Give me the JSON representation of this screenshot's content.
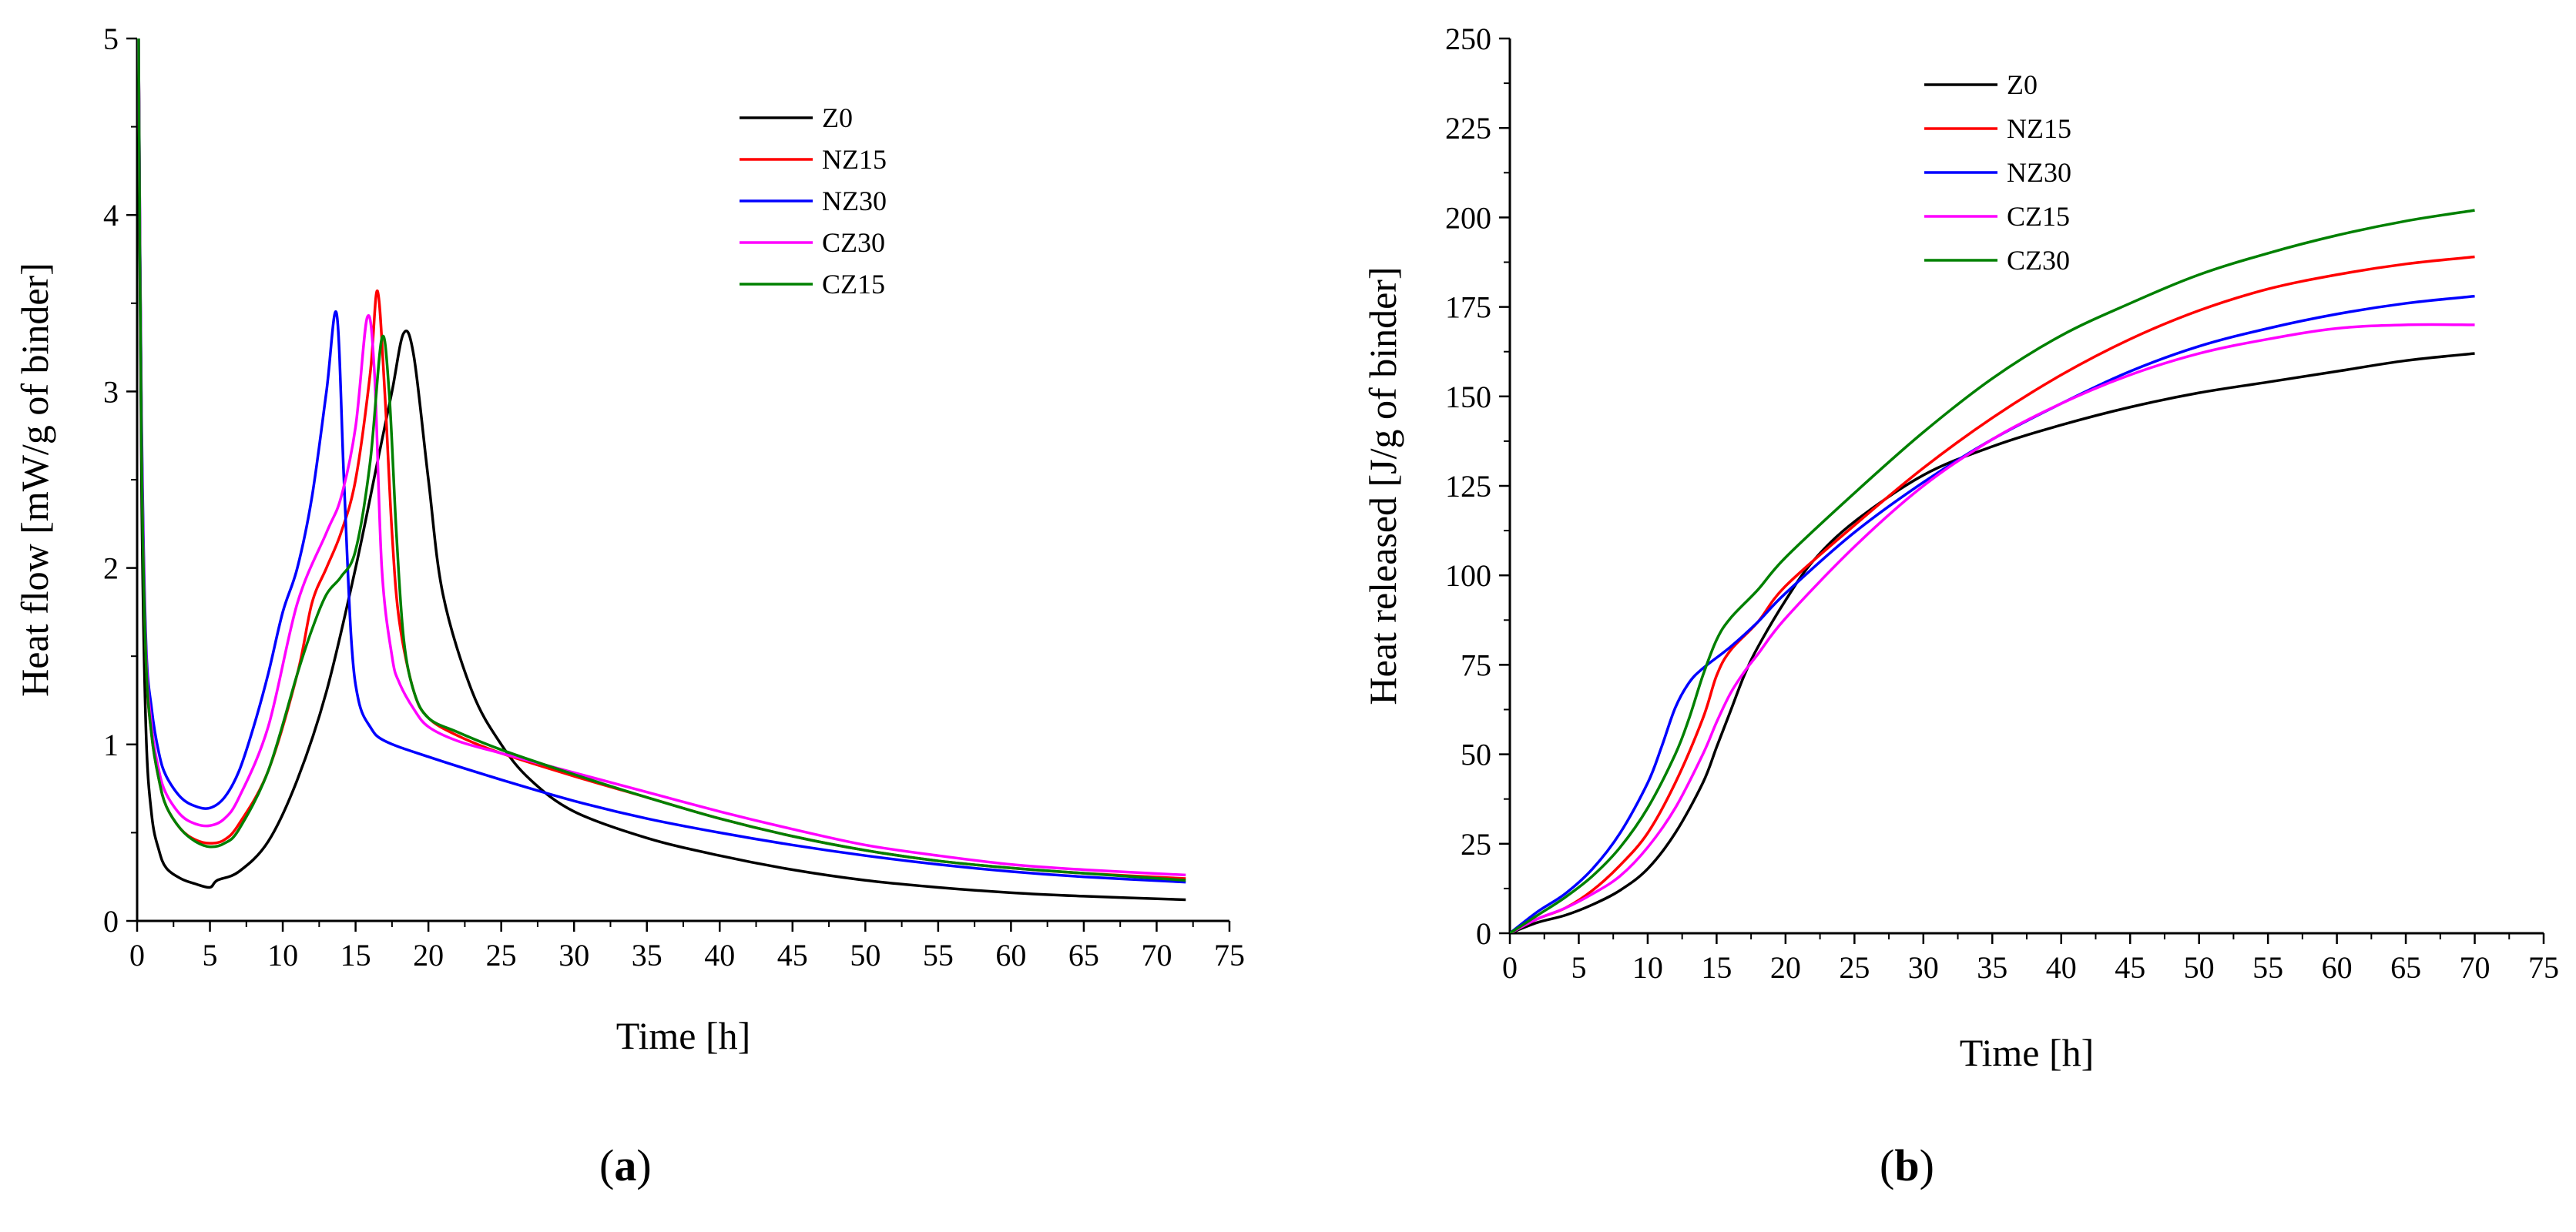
{
  "chart_data": [
    {
      "type": "line",
      "panel_label": "a",
      "xlabel": "Time [h]",
      "ylabel": "Heat flow [mW/g of binder]",
      "xlim": [
        0,
        75
      ],
      "ylim": [
        0,
        5
      ],
      "xticks": [
        0,
        5,
        10,
        15,
        20,
        25,
        30,
        35,
        40,
        45,
        50,
        55,
        60,
        65,
        70,
        75
      ],
      "yticks": [
        0,
        1,
        2,
        3,
        4,
        5
      ],
      "legend_position": "top-right",
      "series": [
        {
          "name": "Z0",
          "color": "#000000",
          "x": [
            0.1,
            0.3,
            0.6,
            1,
            1.5,
            2,
            3,
            4,
            5,
            5.5,
            7,
            9,
            11,
            13,
            15,
            16.5,
            17.5,
            18.3,
            19,
            20,
            21,
            23,
            25,
            27,
            30,
            35,
            40,
            45,
            50,
            55,
            60,
            65,
            72
          ],
          "y": [
            5,
            2.5,
            1.1,
            0.6,
            0.4,
            0.3,
            0.24,
            0.21,
            0.19,
            0.23,
            0.28,
            0.45,
            0.8,
            1.3,
            2.0,
            2.6,
            3.0,
            3.33,
            3.2,
            2.5,
            1.85,
            1.3,
            1.0,
            0.8,
            0.62,
            0.47,
            0.37,
            0.29,
            0.23,
            0.19,
            0.16,
            0.14,
            0.12
          ]
        },
        {
          "name": "NZ15",
          "color": "#ff0000",
          "x": [
            0.1,
            0.3,
            0.6,
            1,
            1.5,
            2,
            3,
            4,
            5,
            6,
            7,
            9,
            11,
            12,
            13,
            14,
            15,
            16,
            16.5,
            17,
            17.5,
            18,
            19,
            20,
            22,
            25,
            30,
            35,
            40,
            45,
            50,
            55,
            60,
            65,
            72
          ],
          "y": [
            5,
            2.8,
            1.5,
            1.05,
            0.8,
            0.65,
            0.52,
            0.46,
            0.44,
            0.46,
            0.55,
            0.85,
            1.4,
            1.8,
            2.0,
            2.2,
            2.5,
            3.1,
            3.57,
            3.0,
            2.2,
            1.7,
            1.3,
            1.15,
            1.05,
            0.95,
            0.82,
            0.7,
            0.58,
            0.48,
            0.4,
            0.34,
            0.3,
            0.27,
            0.24
          ]
        },
        {
          "name": "NZ30",
          "color": "#0000ff",
          "x": [
            0.1,
            0.3,
            0.6,
            1,
            1.5,
            2,
            3,
            4,
            5,
            6,
            7,
            8,
            9,
            10,
            11,
            12,
            13,
            13.7,
            14.2,
            14.7,
            15.2,
            16,
            17,
            20,
            25,
            30,
            35,
            40,
            45,
            50,
            55,
            60,
            65,
            72
          ],
          "y": [
            5,
            2.9,
            1.6,
            1.2,
            0.95,
            0.82,
            0.7,
            0.65,
            0.64,
            0.7,
            0.85,
            1.1,
            1.4,
            1.75,
            2.0,
            2.4,
            3.0,
            3.44,
            2.5,
            1.6,
            1.25,
            1.1,
            1.02,
            0.93,
            0.8,
            0.68,
            0.58,
            0.5,
            0.43,
            0.37,
            0.32,
            0.28,
            0.25,
            0.22
          ]
        },
        {
          "name": "CZ30",
          "color": "#ff00ff",
          "x": [
            0.1,
            0.3,
            0.6,
            1,
            1.5,
            2,
            3,
            4,
            5,
            6,
            7,
            9,
            11,
            13,
            14,
            15,
            15.8,
            16.3,
            16.8,
            17.5,
            18,
            19,
            20,
            22,
            25,
            30,
            35,
            40,
            45,
            50,
            55,
            60,
            65,
            72
          ],
          "y": [
            5,
            2.8,
            1.55,
            1.1,
            0.85,
            0.72,
            0.6,
            0.55,
            0.54,
            0.58,
            0.7,
            1.1,
            1.8,
            2.2,
            2.4,
            2.8,
            3.42,
            3.1,
            2.0,
            1.5,
            1.35,
            1.2,
            1.1,
            1.02,
            0.95,
            0.84,
            0.73,
            0.62,
            0.52,
            0.43,
            0.37,
            0.32,
            0.29,
            0.26
          ]
        },
        {
          "name": "CZ15",
          "color": "#008000",
          "x": [
            0.1,
            0.3,
            0.6,
            1,
            1.5,
            2,
            3,
            4,
            5,
            6,
            7,
            9,
            11,
            12,
            13,
            14,
            15,
            16,
            16.8,
            17.3,
            17.8,
            18.3,
            19,
            20,
            22,
            25,
            30,
            35,
            40,
            45,
            50,
            55,
            60,
            65,
            72
          ],
          "y": [
            5,
            2.7,
            1.5,
            1.05,
            0.8,
            0.65,
            0.52,
            0.45,
            0.42,
            0.44,
            0.52,
            0.85,
            1.4,
            1.65,
            1.85,
            1.95,
            2.1,
            2.6,
            3.3,
            3.0,
            2.2,
            1.6,
            1.3,
            1.15,
            1.07,
            0.97,
            0.83,
            0.7,
            0.58,
            0.48,
            0.4,
            0.34,
            0.3,
            0.27,
            0.23
          ]
        }
      ]
    },
    {
      "type": "line",
      "panel_label": "b",
      "xlabel": "Time [h]",
      "ylabel": "Heat released [J/g of binder]",
      "xlim": [
        0,
        75
      ],
      "ylim": [
        0,
        250
      ],
      "xticks": [
        0,
        5,
        10,
        15,
        20,
        25,
        30,
        35,
        40,
        45,
        50,
        55,
        60,
        65,
        70,
        75
      ],
      "yticks": [
        0,
        25,
        50,
        75,
        100,
        125,
        150,
        175,
        200,
        225,
        250
      ],
      "legend_position": "top-center",
      "series": [
        {
          "name": "Z0",
          "color": "#000000",
          "x": [
            0,
            2,
            4,
            6,
            8,
            10,
            12,
            14,
            15,
            16,
            17,
            18,
            20,
            22,
            25,
            30,
            35,
            40,
            45,
            50,
            55,
            60,
            65,
            70
          ],
          "y": [
            0,
            3,
            5,
            8,
            12,
            18,
            28,
            42,
            52,
            62,
            72,
            80,
            93,
            104,
            115,
            128,
            136,
            142,
            147,
            151,
            154,
            157,
            160,
            162
          ]
        },
        {
          "name": "NZ15",
          "color": "#ff0000",
          "x": [
            0,
            2,
            4,
            6,
            8,
            10,
            12,
            14,
            15,
            16,
            18,
            20,
            25,
            30,
            35,
            40,
            45,
            50,
            55,
            60,
            65,
            70
          ],
          "y": [
            0,
            4,
            7,
            12,
            19,
            28,
            42,
            60,
            72,
            79,
            87,
            97,
            114,
            130,
            144,
            156,
            166,
            174,
            180,
            184,
            187,
            189
          ]
        },
        {
          "name": "NZ30",
          "color": "#0000ff",
          "x": [
            0,
            2,
            4,
            6,
            8,
            10,
            11,
            12,
            13,
            14,
            16,
            18,
            20,
            25,
            30,
            35,
            40,
            45,
            50,
            55,
            60,
            65,
            70
          ],
          "y": [
            0,
            6,
            11,
            18,
            28,
            42,
            52,
            63,
            70,
            74,
            80,
            87,
            95,
            112,
            126,
            138,
            148,
            157,
            164,
            169,
            173,
            176,
            178
          ]
        },
        {
          "name": "CZ15",
          "color": "#ff00ff",
          "x": [
            0,
            2,
            4,
            6,
            8,
            10,
            12,
            14,
            15,
            16,
            17,
            18,
            20,
            25,
            30,
            35,
            40,
            45,
            50,
            55,
            60,
            65,
            70
          ],
          "y": [
            0,
            4,
            7,
            11,
            16,
            24,
            35,
            50,
            59,
            67,
            73,
            78,
            88,
            108,
            125,
            138,
            148,
            156,
            162,
            166,
            169,
            170,
            170
          ]
        },
        {
          "name": "CZ30",
          "color": "#008000",
          "x": [
            0,
            2,
            4,
            6,
            8,
            10,
            12,
            13,
            14,
            15,
            16,
            18,
            20,
            25,
            30,
            35,
            40,
            45,
            50,
            55,
            60,
            65,
            70
          ],
          "y": [
            0,
            5,
            10,
            16,
            24,
            35,
            50,
            60,
            72,
            82,
            88,
            96,
            105,
            123,
            140,
            155,
            167,
            176,
            184,
            190,
            195,
            199,
            202
          ]
        }
      ]
    }
  ]
}
